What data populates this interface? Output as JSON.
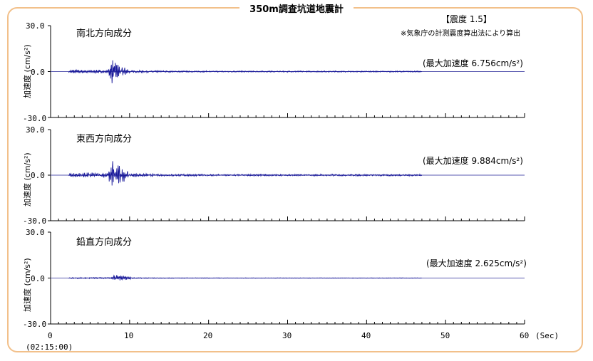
{
  "title": "350m調査坑道地震計",
  "intensity": "【震度 1.5】",
  "method_note": "※気象庁の計測震度算出法により算出",
  "start_time": "(02:15:00)",
  "x_unit": "(Sec)",
  "y_axis_label": "加速度 (cm/s²)",
  "colors": {
    "trace": "#1a1a9a",
    "frame": "#f2c08a",
    "baseline": "#5a5ab0"
  },
  "chart_data": [
    {
      "type": "line",
      "component": "南北方向成分",
      "max_label": "(最大加速度 6.756cm/s²)",
      "max_abs": 6.756,
      "xlim": [
        0,
        60
      ],
      "ylim": [
        -30.0,
        30.0
      ],
      "x_ticks": [
        "0",
        "10",
        "20",
        "30",
        "40",
        "50",
        "60"
      ],
      "y_ticks": [
        "30.0",
        "0.0",
        "-30.0"
      ],
      "peak_time": 7.8
    },
    {
      "type": "line",
      "component": "東西方向成分",
      "max_label": "(最大加速度 9.884cm/s²)",
      "max_abs": 9.884,
      "xlim": [
        0,
        60
      ],
      "ylim": [
        -30.0,
        30.0
      ],
      "x_ticks": [
        "0",
        "10",
        "20",
        "30",
        "40",
        "50",
        "60"
      ],
      "y_ticks": [
        "30.0",
        "0.0",
        "-30.0"
      ],
      "peak_time": 7.8
    },
    {
      "type": "line",
      "component": "鉛直方向成分",
      "max_label": "(最大加速度 2.625cm/s²)",
      "max_abs": 2.625,
      "xlim": [
        0,
        60
      ],
      "ylim": [
        -30.0,
        30.0
      ],
      "x_ticks": [
        "0",
        "10",
        "20",
        "30",
        "40",
        "50",
        "60"
      ],
      "y_ticks": [
        "30.0",
        "0.0",
        "-30.0"
      ],
      "peak_time": 8.2
    }
  ]
}
